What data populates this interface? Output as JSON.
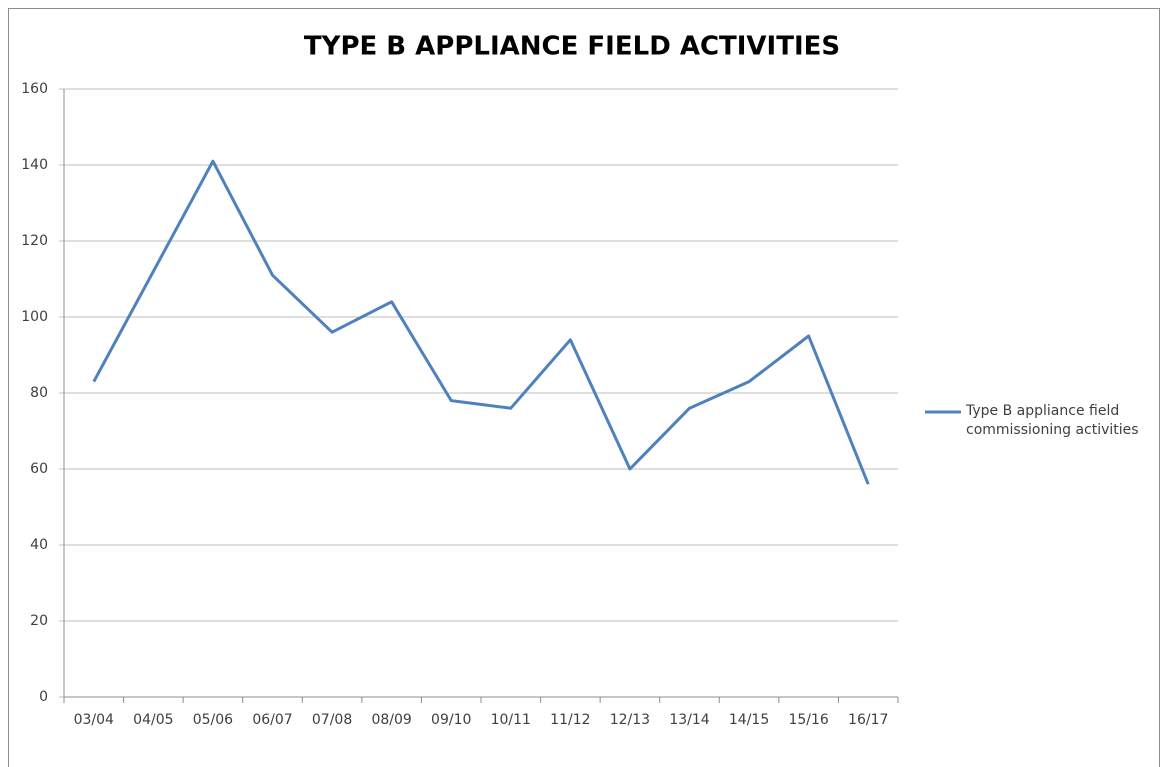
{
  "chart_data": {
    "type": "line",
    "title": "TYPE B APPLIANCE FIELD ACTIVITIES",
    "categories": [
      "03/04",
      "04/05",
      "05/06",
      "06/07",
      "07/08",
      "08/09",
      "09/10",
      "10/11",
      "11/12",
      "12/13",
      "13/14",
      "14/15",
      "15/16",
      "16/17"
    ],
    "series": [
      {
        "name": "Type B appliance field commissioning activities",
        "color": "#4f81bd",
        "values": [
          83,
          112,
          141,
          111,
          96,
          104,
          78,
          76,
          94,
          60,
          76,
          83,
          95,
          56
        ]
      }
    ],
    "ylim": [
      0,
      160
    ],
    "yticks": [
      0,
      20,
      40,
      60,
      80,
      100,
      120,
      140,
      160
    ],
    "grid": true,
    "legend": "right"
  }
}
